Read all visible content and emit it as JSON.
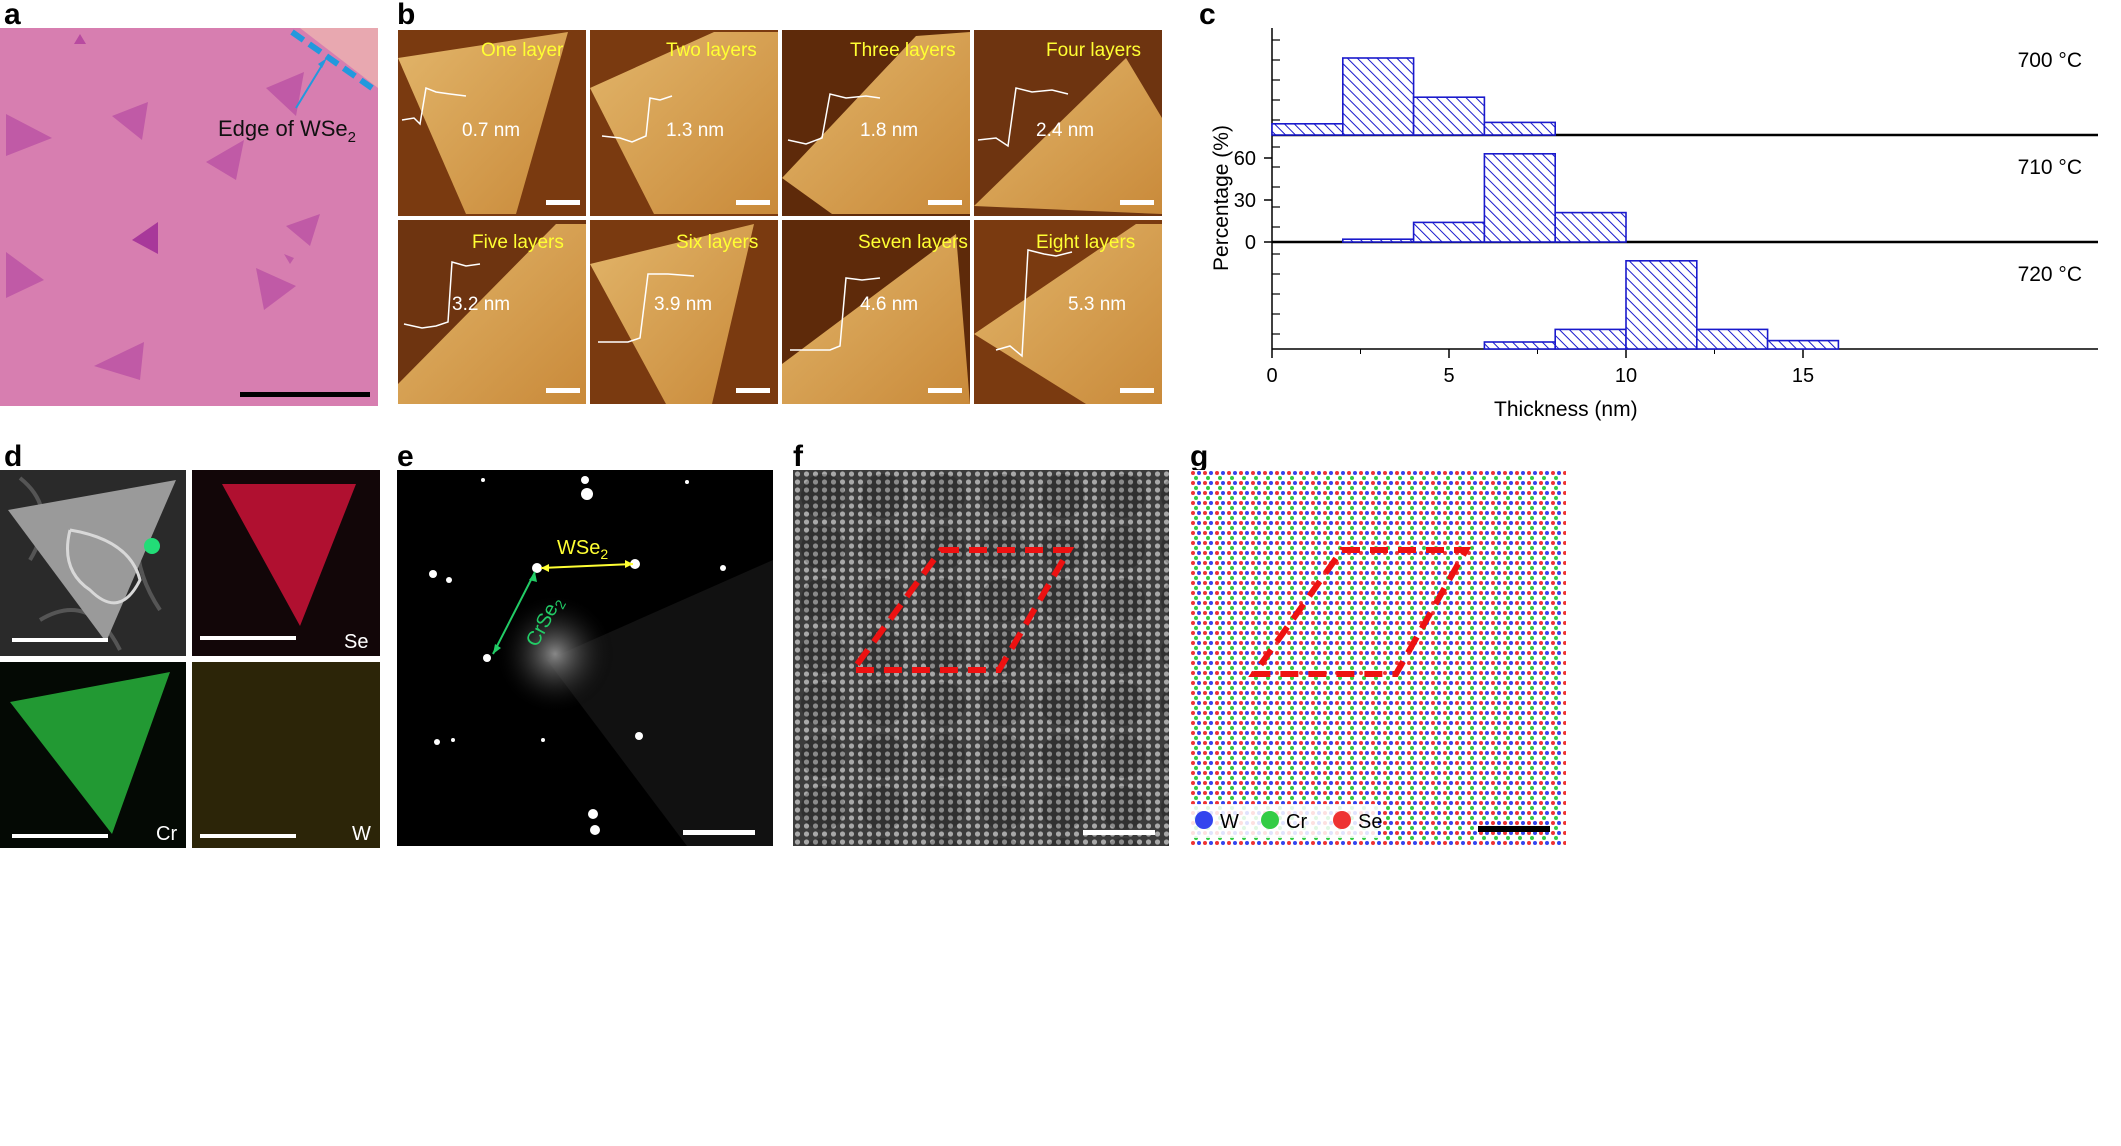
{
  "panel_labels": {
    "a": "a",
    "b": "b",
    "c": "c",
    "d": "d",
    "e": "e",
    "f": "f",
    "g": "g"
  },
  "panel_a": {
    "edge_label": "Edge of WSe",
    "edge_label_sub": "2"
  },
  "panel_b": {
    "tiles": [
      {
        "name": "One layer",
        "thickness": "0.7 nm"
      },
      {
        "name": "Two layers",
        "thickness": "1.3 nm"
      },
      {
        "name": "Three layers",
        "thickness": "1.8 nm"
      },
      {
        "name": "Four layers",
        "thickness": "2.4 nm"
      },
      {
        "name": "Five layers",
        "thickness": "3.2 nm"
      },
      {
        "name": "Six layers",
        "thickness": "3.9 nm"
      },
      {
        "name": "Seven layers",
        "thickness": "4.6 nm"
      },
      {
        "name": "Eight layers",
        "thickness": "5.3 nm"
      }
    ]
  },
  "chart_data": {
    "type": "bar",
    "xlabel": "Thickness (nm)",
    "ylabel": "Percentage (%)",
    "xlim": [
      0,
      17
    ],
    "xticks": [
      0,
      5,
      10,
      15
    ],
    "ylim": [
      0,
      75
    ],
    "yticks": [
      0,
      30,
      60
    ],
    "bin_edges": [
      2,
      4,
      6,
      8,
      10,
      12,
      14,
      16
    ],
    "series": [
      {
        "name": "700 °C",
        "bins": [
          [
            0,
            2,
            8
          ],
          [
            2,
            4,
            55
          ],
          [
            4,
            6,
            27
          ],
          [
            6,
            8,
            9
          ]
        ]
      },
      {
        "name": "710 °C",
        "bins": [
          [
            2,
            4,
            2
          ],
          [
            4,
            6,
            14
          ],
          [
            6,
            8,
            63
          ],
          [
            8,
            10,
            21
          ]
        ]
      },
      {
        "name": "720 °C",
        "bins": [
          [
            6,
            8,
            5
          ],
          [
            8,
            10,
            14
          ],
          [
            10,
            12,
            63
          ],
          [
            12,
            14,
            14
          ],
          [
            14,
            16,
            6
          ]
        ]
      }
    ],
    "colors": {
      "bar_edge": "#1a1acc",
      "hatch": "#1a1acc"
    }
  },
  "panel_d": {
    "labels": {
      "se": "Se",
      "cr": "Cr",
      "w": "W"
    }
  },
  "panel_e": {
    "wse2": "WSe",
    "wse2_sub": "2",
    "crse2": "CrSe",
    "crse2_sub": "2"
  },
  "panel_g": {
    "legend": [
      {
        "label": "W",
        "color": "#3344ee"
      },
      {
        "label": "Cr",
        "color": "#33cc44"
      },
      {
        "label": "Se",
        "color": "#ee3333"
      }
    ]
  }
}
